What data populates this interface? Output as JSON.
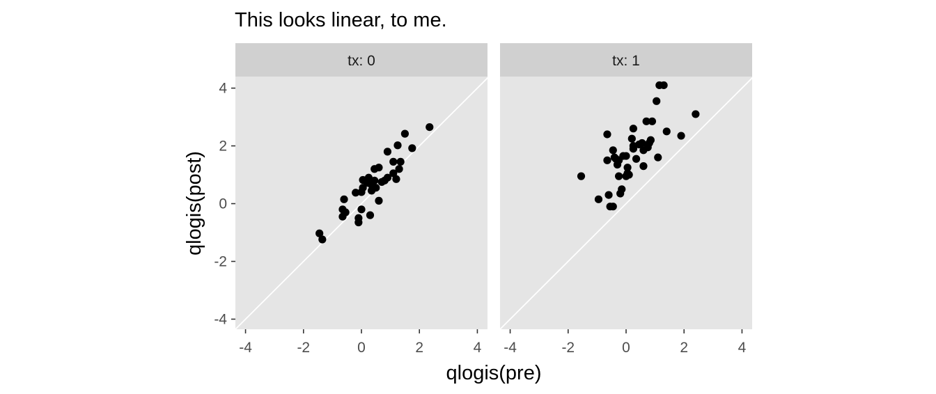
{
  "chart_data": {
    "type": "scatter",
    "title": "This looks linear, to me.",
    "xlabel": "qlogis(pre)",
    "ylabel": "qlogis(post)",
    "xlim": [
      -4.35,
      4.35
    ],
    "ylim": [
      -4.35,
      4.4
    ],
    "xticks": [
      -4,
      -2,
      0,
      2,
      4
    ],
    "yticks": [
      -4,
      -2,
      0,
      2,
      4
    ],
    "reference_line": {
      "slope": 1,
      "intercept": 0
    },
    "panel_bg": "#e5e5e5",
    "strip_bg": "#d0d0d0",
    "point_color": "#000000",
    "panels": [
      {
        "strip": "tx: 0",
        "points": [
          [
            -1.45,
            -1.03
          ],
          [
            -1.35,
            -1.24
          ],
          [
            -0.65,
            -0.45
          ],
          [
            -0.55,
            -0.3
          ],
          [
            -0.65,
            -0.2
          ],
          [
            -0.6,
            0.15
          ],
          [
            -0.2,
            0.38
          ],
          [
            -0.1,
            -0.65
          ],
          [
            -0.1,
            -0.5
          ],
          [
            0.0,
            -0.2
          ],
          [
            0.0,
            0.4
          ],
          [
            0.05,
            0.55
          ],
          [
            0.05,
            0.82
          ],
          [
            0.2,
            0.72
          ],
          [
            0.25,
            0.9
          ],
          [
            0.3,
            -0.4
          ],
          [
            0.35,
            0.45
          ],
          [
            0.35,
            0.65
          ],
          [
            0.45,
            0.8
          ],
          [
            0.45,
            1.2
          ],
          [
            0.5,
            0.55
          ],
          [
            0.6,
            1.25
          ],
          [
            0.6,
            0.1
          ],
          [
            0.7,
            0.75
          ],
          [
            0.8,
            0.8
          ],
          [
            0.9,
            0.9
          ],
          [
            0.9,
            1.8
          ],
          [
            1.1,
            1.05
          ],
          [
            1.1,
            1.45
          ],
          [
            1.2,
            0.85
          ],
          [
            1.25,
            2.02
          ],
          [
            1.3,
            1.2
          ],
          [
            1.35,
            1.45
          ],
          [
            1.5,
            2.42
          ],
          [
            1.75,
            1.92
          ],
          [
            2.35,
            2.65
          ]
        ]
      },
      {
        "strip": "tx: 1",
        "points": [
          [
            -1.55,
            0.95
          ],
          [
            -0.95,
            0.15
          ],
          [
            -0.65,
            2.4
          ],
          [
            -0.65,
            1.5
          ],
          [
            -0.6,
            0.3
          ],
          [
            -0.55,
            -0.1
          ],
          [
            -0.45,
            -0.1
          ],
          [
            -0.45,
            1.85
          ],
          [
            -0.4,
            1.6
          ],
          [
            -0.35,
            1.55
          ],
          [
            -0.3,
            1.35
          ],
          [
            -0.25,
            1.5
          ],
          [
            -0.25,
            0.95
          ],
          [
            -0.2,
            0.35
          ],
          [
            -0.15,
            0.5
          ],
          [
            -0.1,
            1.65
          ],
          [
            0.0,
            0.95
          ],
          [
            0.0,
            1.65
          ],
          [
            0.05,
            1.05
          ],
          [
            0.05,
            1.25
          ],
          [
            0.1,
            1.0
          ],
          [
            0.2,
            2.25
          ],
          [
            0.25,
            2.0
          ],
          [
            0.25,
            2.6
          ],
          [
            0.25,
            1.9
          ],
          [
            0.35,
            1.55
          ],
          [
            0.45,
            2.05
          ],
          [
            0.55,
            2.1
          ],
          [
            0.6,
            1.85
          ],
          [
            0.6,
            1.3
          ],
          [
            0.7,
            2.85
          ],
          [
            0.75,
            1.95
          ],
          [
            0.8,
            2.1
          ],
          [
            0.85,
            2.2
          ],
          [
            0.9,
            2.85
          ],
          [
            1.05,
            3.55
          ],
          [
            1.1,
            1.6
          ],
          [
            1.15,
            4.1
          ],
          [
            1.3,
            4.1
          ],
          [
            1.4,
            2.5
          ],
          [
            1.9,
            2.35
          ],
          [
            2.4,
            3.1
          ]
        ]
      }
    ]
  }
}
